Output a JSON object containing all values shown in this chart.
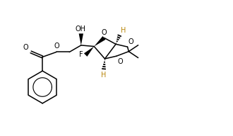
{
  "background": "#ffffff",
  "line_color": "#000000",
  "h_color": "#b8860b",
  "figsize": [
    3.3,
    1.92
  ],
  "dpi": 100,
  "xlim": [
    0,
    10
  ],
  "ylim": [
    0,
    6
  ]
}
